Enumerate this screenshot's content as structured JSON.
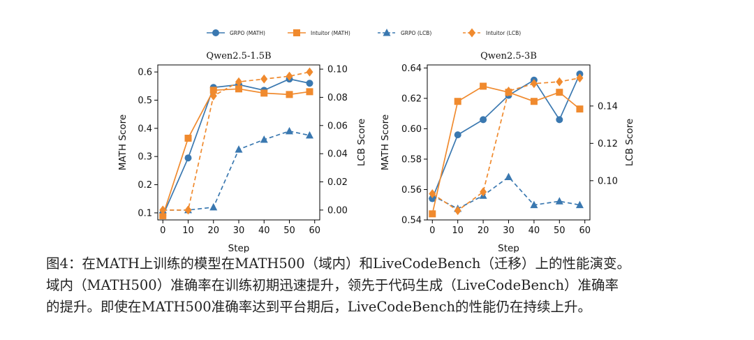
{
  "legend": {
    "items": [
      {
        "label": "GRPO (MATH)",
        "color": "#3a78b0",
        "marker": "circle",
        "dash": false
      },
      {
        "label": "Intuitor (MATH)",
        "color": "#f08a2e",
        "marker": "square",
        "dash": false
      },
      {
        "label": "GRPO (LCB)",
        "color": "#3a78b0",
        "marker": "triangle",
        "dash": true
      },
      {
        "label": "Intuitor (LCB)",
        "color": "#f08a2e",
        "marker": "diamond",
        "dash": true
      }
    ]
  },
  "chart_data": [
    {
      "type": "line",
      "title": "Qwen2.5-1.5B",
      "xlabel": "Step",
      "ylabel_left": "MATH Score",
      "ylabel_right": "LCB Score",
      "xlim": [
        -2,
        62
      ],
      "ylim_left": [
        0.075,
        0.625
      ],
      "ylim_right": [
        -0.007,
        0.103
      ],
      "xticks": [
        0,
        10,
        20,
        30,
        40,
        50,
        60
      ],
      "yticks_left": [
        0.1,
        0.2,
        0.3,
        0.4,
        0.5,
        0.6
      ],
      "yticks_left_labels": [
        "0.1",
        "0.2",
        "0.3",
        "0.4",
        "0.5",
        "0.6"
      ],
      "yticks_right": [
        0.0,
        0.02,
        0.04,
        0.06,
        0.08,
        0.1
      ],
      "yticks_right_labels": [
        "0.00",
        "0.02",
        "0.04",
        "0.06",
        "0.08",
        "0.10"
      ],
      "x": [
        0,
        10,
        20,
        30,
        40,
        50,
        58
      ],
      "series": [
        {
          "name": "GRPO (MATH)",
          "axis": "left",
          "color": "#3a78b0",
          "marker": "circle",
          "dash": false,
          "values": [
            0.09,
            0.295,
            0.545,
            0.555,
            0.535,
            0.575,
            0.56
          ]
        },
        {
          "name": "Intuitor (MATH)",
          "axis": "left",
          "color": "#f08a2e",
          "marker": "square",
          "dash": false,
          "values": [
            0.09,
            0.365,
            0.535,
            0.54,
            0.525,
            0.52,
            0.53
          ]
        },
        {
          "name": "GRPO (LCB)",
          "axis": "right",
          "color": "#3a78b0",
          "marker": "triangle",
          "dash": true,
          "values": [
            0.0,
            0.0,
            0.002,
            0.043,
            0.05,
            0.056,
            0.053
          ]
        },
        {
          "name": "Intuitor (LCB)",
          "axis": "right",
          "color": "#f08a2e",
          "marker": "diamond",
          "dash": true,
          "values": [
            0.0,
            0.0,
            0.081,
            0.091,
            0.093,
            0.095,
            0.098
          ]
        }
      ]
    },
    {
      "type": "line",
      "title": "Qwen2.5-3B",
      "xlabel": "Step",
      "ylabel_left": "MATH Score",
      "ylabel_right": "LCB Score",
      "xlim": [
        -2,
        62
      ],
      "ylim_left": [
        0.54,
        0.642
      ],
      "ylim_right": [
        0.079,
        0.162
      ],
      "xticks": [
        0,
        10,
        20,
        30,
        40,
        50,
        60
      ],
      "yticks_left": [
        0.54,
        0.56,
        0.58,
        0.6,
        0.62,
        0.64
      ],
      "yticks_left_labels": [
        "0.54",
        "0.56",
        "0.58",
        "0.60",
        "0.62",
        "0.64"
      ],
      "yticks_right": [
        0.1,
        0.12,
        0.14
      ],
      "yticks_right_labels": [
        "0.10",
        "0.12",
        "0.14"
      ],
      "x": [
        0,
        10,
        20,
        30,
        40,
        50,
        58
      ],
      "series": [
        {
          "name": "GRPO (MATH)",
          "axis": "left",
          "color": "#3a78b0",
          "marker": "circle",
          "dash": false,
          "values": [
            0.554,
            0.596,
            0.606,
            0.622,
            0.632,
            0.606,
            0.636
          ]
        },
        {
          "name": "Intuitor (MATH)",
          "axis": "left",
          "color": "#f08a2e",
          "marker": "square",
          "dash": false,
          "values": [
            0.544,
            0.618,
            0.628,
            0.624,
            0.618,
            0.624,
            0.613
          ]
        },
        {
          "name": "GRPO (LCB)",
          "axis": "right",
          "color": "#3a78b0",
          "marker": "triangle",
          "dash": true,
          "values": [
            0.092,
            0.085,
            0.092,
            0.102,
            0.087,
            0.089,
            0.087
          ]
        },
        {
          "name": "Intuitor (LCB)",
          "axis": "right",
          "color": "#f08a2e",
          "marker": "diamond",
          "dash": true,
          "values": [
            0.093,
            0.084,
            0.094,
            0.148,
            0.152,
            0.153,
            0.155
          ]
        }
      ]
    }
  ],
  "caption": {
    "line1": "图4：在MATH上训练的模型在MATH500（域内）和LiveCodeBench（迁移）上的性能演变。",
    "line2": "域内（MATH500）准确率在训练初期迅速提升，领先于代码生成（LiveCodeBench）准确率",
    "line3": "的提升。即使在MATH500准确率达到平台期后，LiveCodeBench的性能仍在持续上升。"
  }
}
